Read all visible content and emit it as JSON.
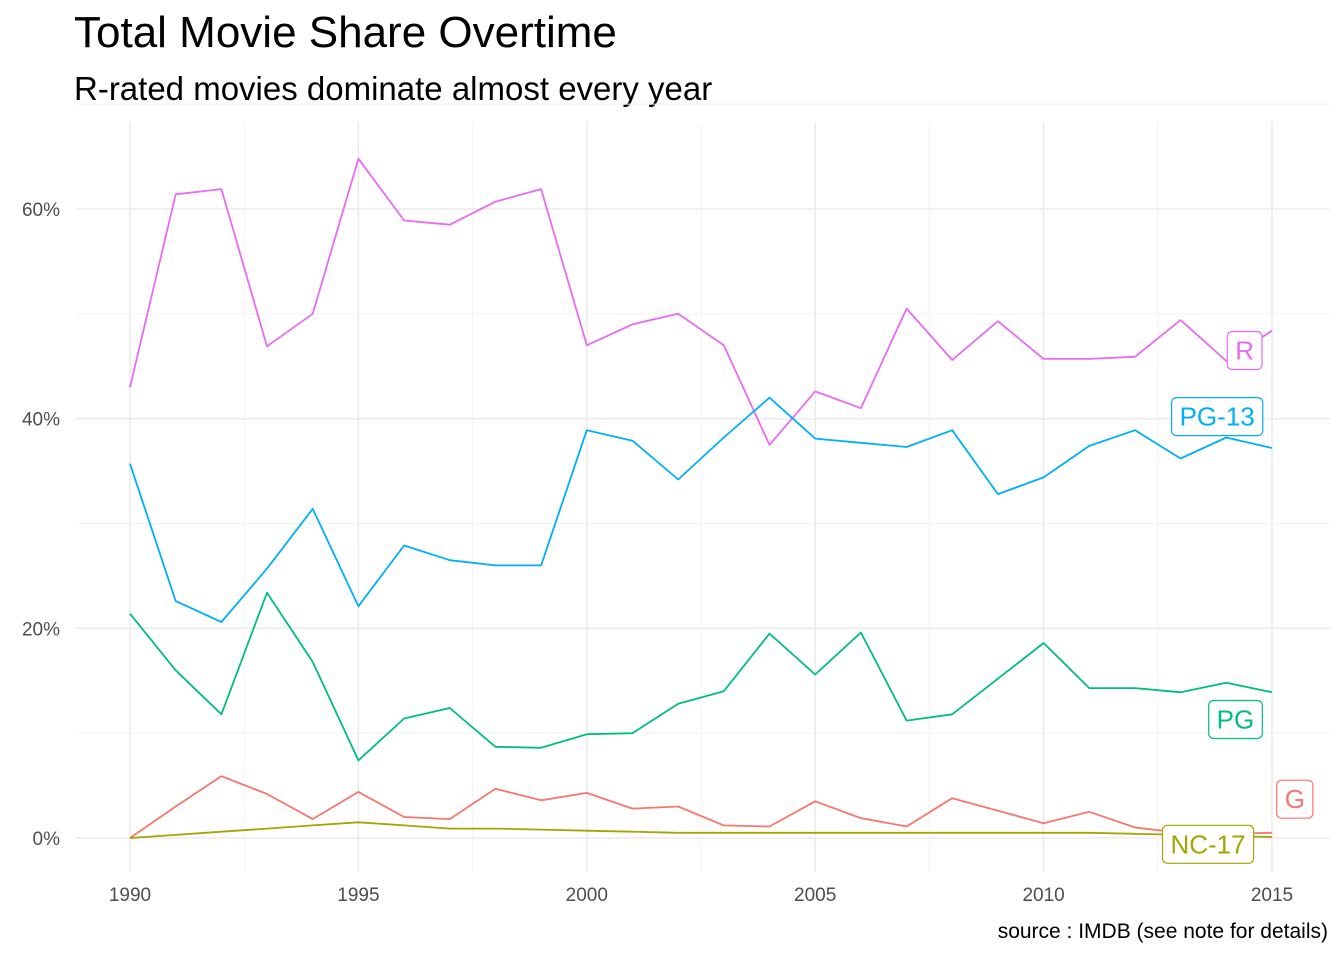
{
  "chart_data": {
    "type": "line",
    "title": "Total Movie Share Overtime",
    "subtitle": "R-rated movies dominate almost every year",
    "caption": "source : IMDB (see note for details)",
    "xlabel": "",
    "ylabel": "",
    "xlim": [
      1989.8,
      2015.2
    ],
    "ylim": [
      -0.02,
      0.68
    ],
    "x_ticks": [
      1990,
      1995,
      2000,
      2005,
      2010,
      2015
    ],
    "y_ticks": [
      0,
      0.2,
      0.4,
      0.6
    ],
    "y_tick_labels": [
      "0%",
      "20%",
      "40%",
      "60%"
    ],
    "grid": true,
    "legend": "direct labels at line ends",
    "x": [
      1990,
      1991,
      1992,
      1993,
      1994,
      1995,
      1996,
      1997,
      1998,
      1999,
      2000,
      2001,
      2002,
      2003,
      2004,
      2005,
      2006,
      2007,
      2008,
      2009,
      2010,
      2011,
      2012,
      2013,
      2014,
      2015
    ],
    "series": [
      {
        "name": "R",
        "color": "#E76BF3",
        "label_x": 2014.4,
        "label_y": 0.465,
        "values": [
          0.43,
          0.614,
          0.619,
          0.469,
          0.5,
          0.648,
          0.589,
          0.585,
          0.607,
          0.619,
          0.47,
          0.49,
          0.5,
          0.47,
          0.375,
          0.426,
          0.41,
          0.505,
          0.456,
          0.493,
          0.457,
          0.457,
          0.459,
          0.494,
          0.455,
          0.484
        ]
      },
      {
        "name": "PG-13",
        "color": "#00B0F6",
        "label_x": 2013.8,
        "label_y": 0.402,
        "values": [
          0.357,
          0.226,
          0.206,
          0.257,
          0.314,
          0.221,
          0.279,
          0.265,
          0.26,
          0.26,
          0.389,
          0.379,
          0.342,
          0.382,
          0.42,
          0.381,
          0.377,
          0.373,
          0.389,
          0.328,
          0.344,
          0.374,
          0.389,
          0.362,
          0.382,
          0.372
        ]
      },
      {
        "name": "PG",
        "color": "#00BF7D",
        "label_x": 2014.2,
        "label_y": 0.113,
        "values": [
          0.214,
          0.16,
          0.118,
          0.234,
          0.168,
          0.074,
          0.114,
          0.124,
          0.087,
          0.086,
          0.099,
          0.1,
          0.128,
          0.14,
          0.195,
          0.156,
          0.196,
          0.112,
          0.118,
          0.152,
          0.186,
          0.143,
          0.143,
          0.139,
          0.148,
          0.139
        ]
      },
      {
        "name": "G",
        "color": "#F8766D",
        "label_x": 2015.5,
        "label_y": 0.037,
        "values": [
          0.0,
          0.03,
          0.059,
          0.042,
          0.018,
          0.044,
          0.02,
          0.018,
          0.047,
          0.036,
          0.043,
          0.028,
          0.03,
          0.012,
          0.011,
          0.035,
          0.019,
          0.011,
          0.038,
          0.026,
          0.014,
          0.025,
          0.01,
          0.005,
          0.004,
          0.005
        ]
      },
      {
        "name": "NC-17",
        "color": "#A3A500",
        "label_x": 2013.6,
        "label_y": -0.006,
        "values": [
          0.0,
          0.003,
          0.006,
          0.009,
          0.012,
          0.015,
          0.012,
          0.009,
          0.009,
          0.008,
          0.007,
          0.006,
          0.005,
          0.005,
          0.005,
          0.005,
          0.005,
          0.005,
          0.005,
          0.005,
          0.005,
          0.005,
          0.004,
          0.003,
          0.002,
          0.001
        ]
      }
    ]
  }
}
